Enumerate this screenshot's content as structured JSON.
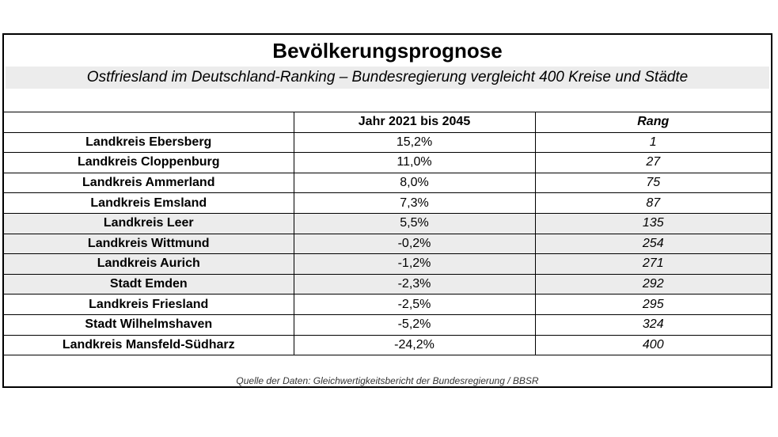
{
  "title": "Bevölkerungsprognose",
  "subtitle": "Ostfriesland im Deutschland-Ranking – Bundesregierung vergleicht 400 Kreise und Städte",
  "table": {
    "headers": [
      "",
      "Jahr 2021 bis 2045",
      "Rang"
    ],
    "rows": [
      {
        "name": "Landkreis Ebersberg",
        "change": "15,2%",
        "rank": "1"
      },
      {
        "name": "Landkreis Cloppenburg",
        "change": "11,0%",
        "rank": "27"
      },
      {
        "name": "Landkreis Ammerland",
        "change": "8,0%",
        "rank": "75"
      },
      {
        "name": "Landkreis Emsland",
        "change": "7,3%",
        "rank": "87"
      },
      {
        "name": "Landkreis Leer",
        "change": "5,5%",
        "rank": "135"
      },
      {
        "name": "Landkreis Wittmund",
        "change": "-0,2%",
        "rank": "254"
      },
      {
        "name": "Landkreis Aurich",
        "change": "-1,2%",
        "rank": "271"
      },
      {
        "name": "Stadt Emden",
        "change": "-2,3%",
        "rank": "292"
      },
      {
        "name": "Landkreis Friesland",
        "change": "-2,5%",
        "rank": "295"
      },
      {
        "name": "Stadt Wilhelmshaven",
        "change": "-5,2%",
        "rank": "324"
      },
      {
        "name": "Landkreis Mansfeld-Südharz",
        "change": "-24,2%",
        "rank": "400"
      }
    ]
  },
  "source": "Quelle der Daten: Gleichwertigkeitsbericht der Bundesregierung / BBSR",
  "colors": {
    "shade": "#ececec",
    "border": "#000000"
  }
}
